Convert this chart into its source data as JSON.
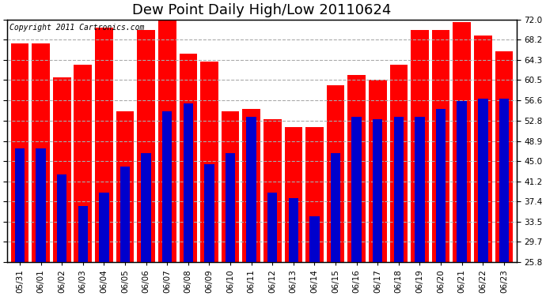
{
  "title": "Dew Point Daily High/Low 20110624",
  "copyright": "Copyright 2011 Cartronics.com",
  "dates": [
    "05/31",
    "06/01",
    "06/02",
    "06/03",
    "06/04",
    "06/05",
    "06/06",
    "06/07",
    "06/08",
    "06/09",
    "06/10",
    "06/11",
    "06/12",
    "06/13",
    "06/14",
    "06/15",
    "06/16",
    "06/17",
    "06/18",
    "06/19",
    "06/20",
    "06/21",
    "06/22",
    "06/23"
  ],
  "highs": [
    67.5,
    67.5,
    61.0,
    63.5,
    70.5,
    54.5,
    70.0,
    72.5,
    65.5,
    64.0,
    54.5,
    55.0,
    53.0,
    51.5,
    51.5,
    59.5,
    61.5,
    60.5,
    63.5,
    70.0,
    70.0,
    71.5,
    69.0,
    66.0
  ],
  "lows": [
    47.5,
    47.5,
    42.5,
    36.5,
    39.0,
    44.0,
    46.5,
    54.5,
    56.0,
    44.5,
    46.5,
    53.5,
    39.0,
    38.0,
    34.5,
    46.5,
    53.5,
    53.0,
    53.5,
    53.5,
    55.0,
    56.5,
    57.0,
    57.0
  ],
  "high_color": "#FF0000",
  "low_color": "#0000CC",
  "background_color": "#FFFFFF",
  "plot_bg_color": "#FFFFFF",
  "grid_color": "#AAAAAA",
  "ymin": 25.8,
  "ymax": 72.0,
  "yticks": [
    25.8,
    29.7,
    33.5,
    37.4,
    41.2,
    45.0,
    48.9,
    52.8,
    56.6,
    60.5,
    64.3,
    68.2,
    72.0
  ],
  "title_fontsize": 13,
  "copyright_fontsize": 7,
  "tick_fontsize": 7.5,
  "bar_width": 0.85
}
